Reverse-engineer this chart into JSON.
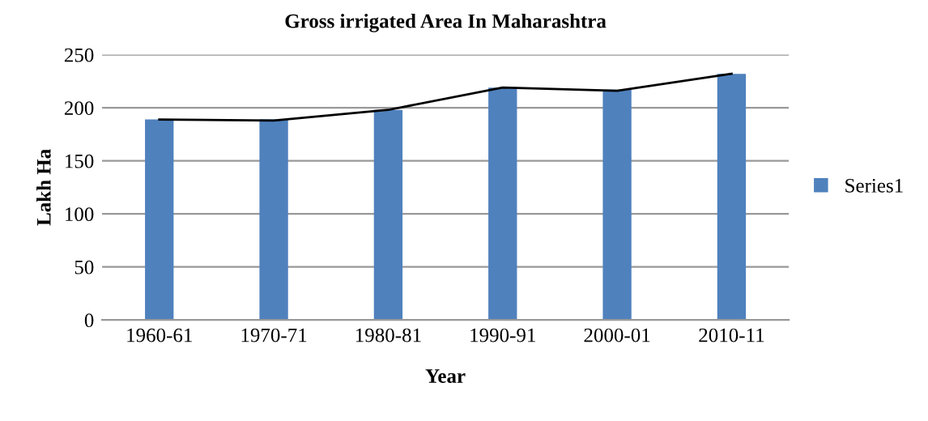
{
  "chart_data": {
    "type": "bar",
    "title": "Gross irrigated Area In Maharashtra",
    "xlabel": "Year",
    "ylabel": "Lakh Ha",
    "categories": [
      "1960-61",
      "1970-71",
      "1980-81",
      "1990-91",
      "2000-01",
      "2010-11"
    ],
    "series": [
      {
        "name": "Series1",
        "color": "#4f81bd",
        "values": [
          189,
          189,
          198,
          219,
          217,
          232
        ]
      },
      {
        "type": "line",
        "color": "#000000",
        "values": [
          189,
          188,
          198,
          219,
          216,
          232
        ]
      }
    ],
    "ylim": [
      0,
      250
    ],
    "yticks": [
      0,
      50,
      100,
      150,
      200,
      250
    ],
    "grid": "y",
    "legend": "right"
  }
}
